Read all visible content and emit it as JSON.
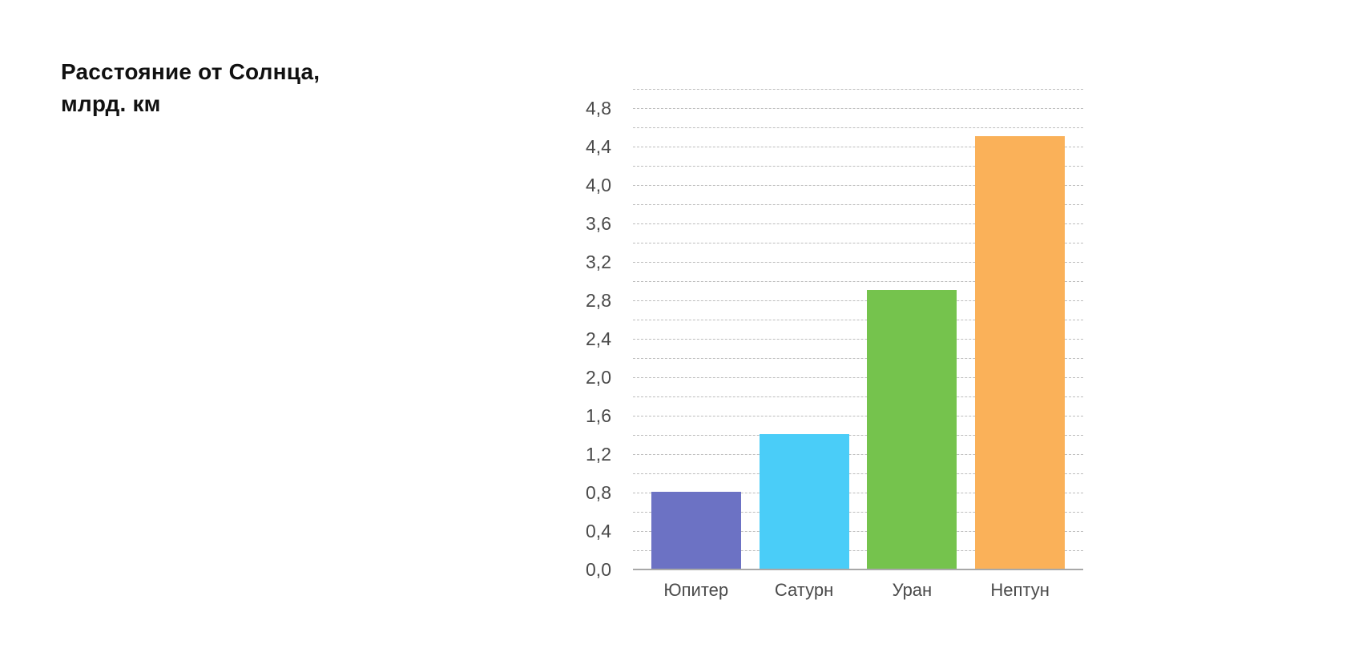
{
  "chart_data": {
    "type": "bar",
    "title_line1": "Расстояние от Солнца,",
    "title_line2": "млрд. км",
    "categories": [
      "Юпитер",
      "Сатурн",
      "Уран",
      "Нептун"
    ],
    "values": [
      0.8,
      1.4,
      2.9,
      4.5
    ],
    "bar_colors": [
      "#6C72C4",
      "#4ACDF8",
      "#75C34D",
      "#FAB159"
    ],
    "ylim": [
      0,
      5.0
    ],
    "minor_grid_step": 0.2,
    "ytick_step": 0.4,
    "ytick_labels": [
      "0,0",
      "0,4",
      "0,8",
      "1,2",
      "1,6",
      "2,0",
      "2,4",
      "2,8",
      "3,2",
      "3,6",
      "4,0",
      "4,4",
      "4,8"
    ],
    "grid": "horizontal-dashed",
    "legend": "none",
    "colors": {
      "title": "#111111",
      "tick_label": "#4a4a4a",
      "gridline": "#bdbdbd",
      "axis_line": "#a8a8a8",
      "background": "#ffffff"
    }
  }
}
